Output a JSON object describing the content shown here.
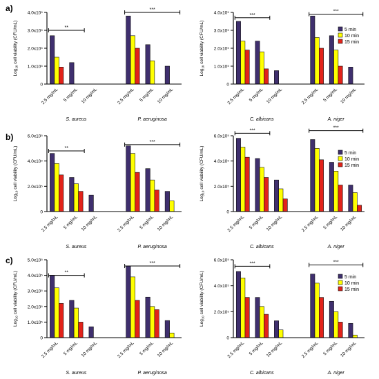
{
  "panel_labels": [
    "a)",
    "b)",
    "c)"
  ],
  "legend_labels": [
    "5 min",
    "10 min",
    "15 min"
  ],
  "colors": {
    "5 min": "#3f2f6e",
    "10 min": "#ffff00",
    "15 min": "#e2231a",
    "axis": "#000000",
    "bar_edge": "#111111"
  },
  "chart_data": [
    {
      "type": "bar",
      "panel": "a)",
      "title": "",
      "ylabel": "Log10 cell viability (CFU/mL)",
      "ytick_labels": [
        "0",
        "1.0x10⁵",
        "2.0x10⁵",
        "3.0x10⁵",
        "4.0x10⁵"
      ],
      "ylim": [
        0,
        4.0
      ],
      "categories": [
        "2.5 mg/mL",
        "5 mg/mL",
        "10 mg/mL",
        "2.5 mg/mL",
        "5 mg/mL",
        "10 mg/mL"
      ],
      "groups": [
        "S. aureus",
        "P. aeruginosa"
      ],
      "series": [
        {
          "name": "5 min",
          "values": [
            2.7,
            1.2,
            0,
            3.8,
            2.2,
            1.0
          ]
        },
        {
          "name": "10 min",
          "values": [
            1.5,
            0,
            0,
            2.7,
            1.3,
            0
          ]
        },
        {
          "name": "15 min",
          "values": [
            0.95,
            0,
            0,
            2.0,
            0,
            0
          ]
        }
      ],
      "significance": [
        {
          "label": "**",
          "from": 0,
          "to": 1,
          "y": 3.0
        },
        {
          "label": "***",
          "from": 3,
          "to": 5,
          "y": 4.0
        }
      ],
      "legend": false
    },
    {
      "type": "bar",
      "panel": "a)",
      "title": "",
      "ylabel": "Log10 cell viability (CFU/mL)",
      "ytick_labels": [
        "0",
        "1.0x10⁵",
        "2.0x10⁵",
        "3.0x10⁵",
        "4.0x10⁵"
      ],
      "ylim": [
        0,
        4.0
      ],
      "categories": [
        "2.5 mg/mL",
        "5 mg/mL",
        "10 mg/mL",
        "2.5 mg/mL",
        "5 mg/mL",
        "10 mg/mL"
      ],
      "groups": [
        "C. albicans",
        "A. niger"
      ],
      "series": [
        {
          "name": "5 min",
          "values": [
            3.5,
            2.4,
            0.75,
            3.8,
            2.7,
            0.95
          ]
        },
        {
          "name": "10 min",
          "values": [
            2.4,
            1.8,
            0,
            2.6,
            1.9,
            0
          ]
        },
        {
          "name": "15 min",
          "values": [
            1.9,
            0.85,
            0,
            2.0,
            1.0,
            0
          ]
        }
      ],
      "significance": [
        {
          "label": "***",
          "from": 0,
          "to": 1,
          "y": 3.7
        },
        {
          "label": "***",
          "from": 3,
          "to": 5,
          "y": 3.9
        }
      ],
      "legend": true,
      "legend_position": "top-right"
    },
    {
      "type": "bar",
      "panel": "b)",
      "title": "",
      "ylabel": "Log10 cell viability (CFU/mL)",
      "ytick_labels": [
        "0",
        "2.0x10⁵",
        "4.0x10⁵",
        "6.0x10⁵"
      ],
      "ylim": [
        0,
        6.0
      ],
      "categories": [
        "2.5 mg/mL",
        "5 mg/mL",
        "10 mg/mL",
        "2.5 mg/mL",
        "5 mg/mL",
        "10 mg/mL"
      ],
      "groups": [
        "S. aureus",
        "P. aeruginosa"
      ],
      "series": [
        {
          "name": "5 min",
          "values": [
            4.6,
            2.7,
            1.3,
            5.2,
            3.4,
            1.6
          ]
        },
        {
          "name": "10 min",
          "values": [
            3.8,
            2.2,
            0,
            4.6,
            2.5,
            0.85
          ]
        },
        {
          "name": "15 min",
          "values": [
            2.9,
            1.6,
            0,
            3.1,
            1.7,
            0
          ]
        }
      ],
      "significance": [
        {
          "label": "**",
          "from": 0,
          "to": 1,
          "y": 4.8
        },
        {
          "label": "***",
          "from": 3,
          "to": 5,
          "y": 5.3
        }
      ],
      "legend": false
    },
    {
      "type": "bar",
      "panel": "b)",
      "title": "",
      "ylabel": "Log10 cell viability (CFU/mL)",
      "ytick_labels": [
        "0",
        "2.0x10⁵",
        "4.0x10⁵",
        "6.0x10⁵"
      ],
      "ylim": [
        0,
        6.0
      ],
      "categories": [
        "2.5 mg/mL",
        "5 mg/mL",
        "10 mg/mL",
        "2.5 mg/mL",
        "5 mg/mL",
        "10 mg/mL"
      ],
      "groups": [
        "C. albicans",
        "A. niger"
      ],
      "series": [
        {
          "name": "5 min",
          "values": [
            5.8,
            4.2,
            2.5,
            5.7,
            3.9,
            2.1
          ]
        },
        {
          "name": "10 min",
          "values": [
            5.1,
            3.5,
            1.8,
            5.0,
            3.2,
            1.5
          ]
        },
        {
          "name": "15 min",
          "values": [
            4.3,
            2.7,
            1.0,
            4.1,
            2.1,
            0.5
          ]
        }
      ],
      "significance": [
        {
          "label": "***",
          "from": 0,
          "to": 1,
          "y": 6.2
        },
        {
          "label": "***",
          "from": 3,
          "to": 5,
          "y": 6.4
        }
      ],
      "legend": true,
      "legend_position": "top-right"
    },
    {
      "type": "bar",
      "panel": "c)",
      "title": "",
      "ylabel": "Log10 cell viability (CFU/mL)",
      "ytick_labels": [
        "0",
        "1.0x10⁵",
        "2.0x10⁵",
        "3.0x10⁵",
        "4.0x10⁵",
        "5.0x10⁵"
      ],
      "ylim": [
        0,
        5.0
      ],
      "categories": [
        "2.5 mg/mL",
        "5 mg/mL",
        "10 mg/mL",
        "2.5 mg/mL",
        "5 mg/mL",
        "10 mg/mL"
      ],
      "groups": [
        "S. aureus",
        "P. aeruginosa"
      ],
      "series": [
        {
          "name": "5 min",
          "values": [
            4.0,
            2.4,
            0.7,
            4.6,
            2.6,
            1.1
          ]
        },
        {
          "name": "10 min",
          "values": [
            3.2,
            1.9,
            0,
            3.9,
            2.0,
            0.3
          ]
        },
        {
          "name": "15 min",
          "values": [
            2.2,
            1.0,
            0,
            2.4,
            1.8,
            0
          ]
        }
      ],
      "significance": [
        {
          "label": "**",
          "from": 0,
          "to": 1,
          "y": 4.0
        },
        {
          "label": "***",
          "from": 3,
          "to": 5,
          "y": 4.6
        }
      ],
      "legend": false
    },
    {
      "type": "bar",
      "panel": "c)",
      "title": "",
      "ylabel": "Log10 cell viability (CFU/mL)",
      "ytick_labels": [
        "0",
        "2.0x10⁵",
        "4.0x10⁵",
        "6.0x10⁵"
      ],
      "ylim": [
        0,
        6.0
      ],
      "categories": [
        "2.5 mg/mL",
        "5 mg/mL",
        "10 mg/mL",
        "2.5 mg/mL",
        "5 mg/mL",
        "10 mg/mL"
      ],
      "groups": [
        "C. albicans",
        "A. niger"
      ],
      "series": [
        {
          "name": "5 min",
          "values": [
            5.1,
            3.1,
            1.3,
            4.9,
            2.8,
            1.1
          ]
        },
        {
          "name": "10 min",
          "values": [
            4.6,
            2.4,
            0.6,
            4.2,
            2.0,
            0.2
          ]
        },
        {
          "name": "15 min",
          "values": [
            3.1,
            1.8,
            0,
            3.1,
            1.2,
            0
          ]
        }
      ],
      "significance": [
        {
          "label": "***",
          "from": 0,
          "to": 1,
          "y": 5.5
        },
        {
          "label": "***",
          "from": 3,
          "to": 5,
          "y": 5.6
        }
      ],
      "legend": true,
      "legend_position": "top-right"
    }
  ]
}
